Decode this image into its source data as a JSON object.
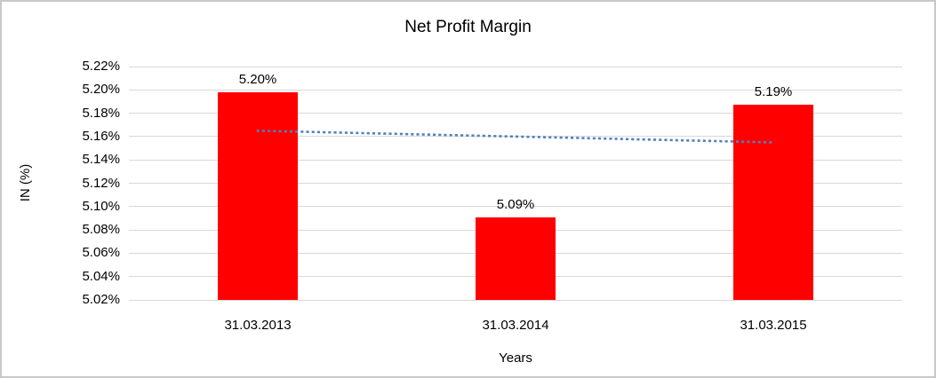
{
  "frame": {
    "background": "#ffffff",
    "border_color": "#c8c8c8"
  },
  "chart_data": {
    "type": "bar",
    "title": "Net Profit Margin",
    "xlabel": "Years",
    "ylabel": "IN (%)",
    "categories": [
      "31.03.2013",
      "31.03.2014",
      "31.03.2015"
    ],
    "values": [
      5.198,
      5.091,
      5.187
    ],
    "data_labels": [
      "5.20%",
      "5.09%",
      "5.19%"
    ],
    "bar_color": "#ff0000",
    "ylim": [
      5.02,
      5.22
    ],
    "y_ticks": [
      "5.22%",
      "5.20%",
      "5.18%",
      "5.16%",
      "5.14%",
      "5.12%",
      "5.10%",
      "5.08%",
      "5.06%",
      "5.04%",
      "5.02%"
    ],
    "y_tick_values": [
      5.22,
      5.2,
      5.18,
      5.16,
      5.14,
      5.12,
      5.1,
      5.08,
      5.06,
      5.04,
      5.02
    ],
    "grid": "horizontal",
    "gridline_color": "#d9d9d9",
    "legend": "none",
    "trendline": {
      "type": "linear",
      "style": "dotted",
      "color": "#4f81bd",
      "start_value": 5.165,
      "end_value": 5.155,
      "start_category_index": 0,
      "end_category_index": 2
    }
  }
}
